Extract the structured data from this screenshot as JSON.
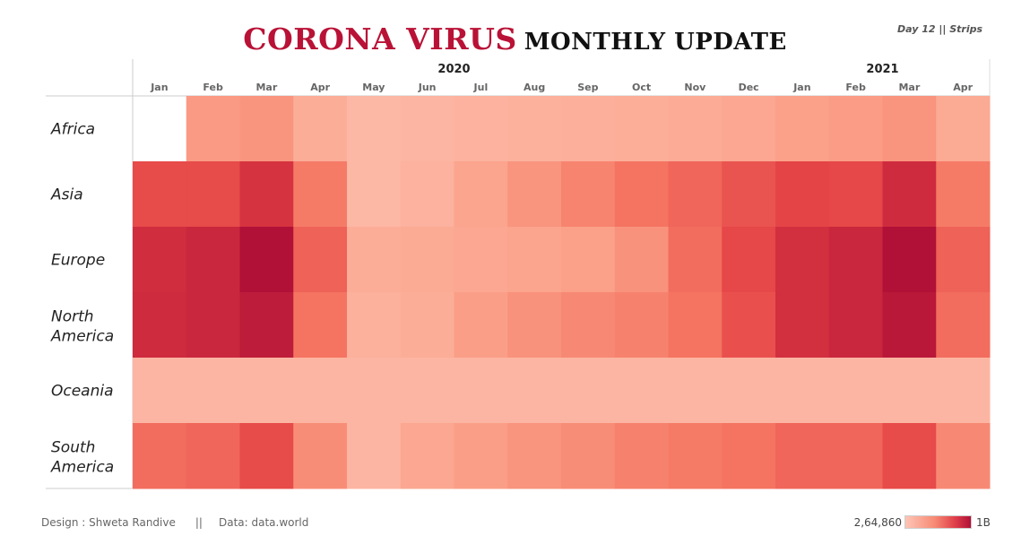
{
  "header": {
    "title_red": "CORONA VIRUS",
    "title_black": "MONTHLY UPDATE",
    "corner_note": "Day 12 || Strips"
  },
  "footer": {
    "design": "Design : Shweta Randive",
    "separator": "||",
    "data_source": "Data: data.world"
  },
  "legend": {
    "min_label": "2,64,860",
    "max_label": "1B",
    "min_color": "#fdc5b6",
    "max_color": "#b11037"
  },
  "chart_data": {
    "type": "heatmap",
    "title": "CORONA VIRUS MONTHLY UPDATE",
    "years": [
      {
        "label": "2020",
        "months": 12
      },
      {
        "label": "2021",
        "months": 4
      }
    ],
    "x": [
      "Jan",
      "Feb",
      "Mar",
      "Apr",
      "May",
      "Jun",
      "Jul",
      "Aug",
      "Sep",
      "Oct",
      "Nov",
      "Dec",
      "Jan",
      "Feb",
      "Mar",
      "Apr"
    ],
    "rows": [
      {
        "label": "Africa",
        "values": [
          null,
          0.3,
          0.33,
          0.18,
          0.1,
          0.12,
          0.14,
          0.15,
          0.16,
          0.17,
          0.19,
          0.22,
          0.26,
          0.29,
          0.34,
          0.2
        ]
      },
      {
        "label": "Asia",
        "values": [
          0.7,
          0.7,
          0.82,
          0.48,
          0.1,
          0.14,
          0.24,
          0.33,
          0.43,
          0.52,
          0.58,
          0.66,
          0.73,
          0.72,
          0.86,
          0.48
        ]
      },
      {
        "label": "Europe",
        "values": [
          0.85,
          0.88,
          1.0,
          0.6,
          0.18,
          0.2,
          0.22,
          0.24,
          0.27,
          0.35,
          0.55,
          0.72,
          0.84,
          0.88,
          1.0,
          0.6
        ]
      },
      {
        "label": "North America",
        "values": [
          0.86,
          0.88,
          0.94,
          0.52,
          0.15,
          0.18,
          0.28,
          0.35,
          0.4,
          0.44,
          0.52,
          0.68,
          0.84,
          0.88,
          0.96,
          0.55
        ]
      },
      {
        "label": "Oceania",
        "values": [
          0.12,
          0.12,
          0.12,
          0.12,
          0.12,
          0.12,
          0.12,
          0.12,
          0.12,
          0.12,
          0.12,
          0.12,
          0.12,
          0.12,
          0.12,
          0.12
        ]
      },
      {
        "label": "South America",
        "values": [
          0.55,
          0.58,
          0.7,
          0.38,
          0.12,
          0.22,
          0.28,
          0.34,
          0.38,
          0.44,
          0.48,
          0.52,
          0.58,
          0.58,
          0.7,
          0.4
        ]
      }
    ],
    "scale": {
      "min": "2,64,860",
      "max": "1B"
    },
    "grid": false,
    "legend_position": "bottom-right"
  }
}
